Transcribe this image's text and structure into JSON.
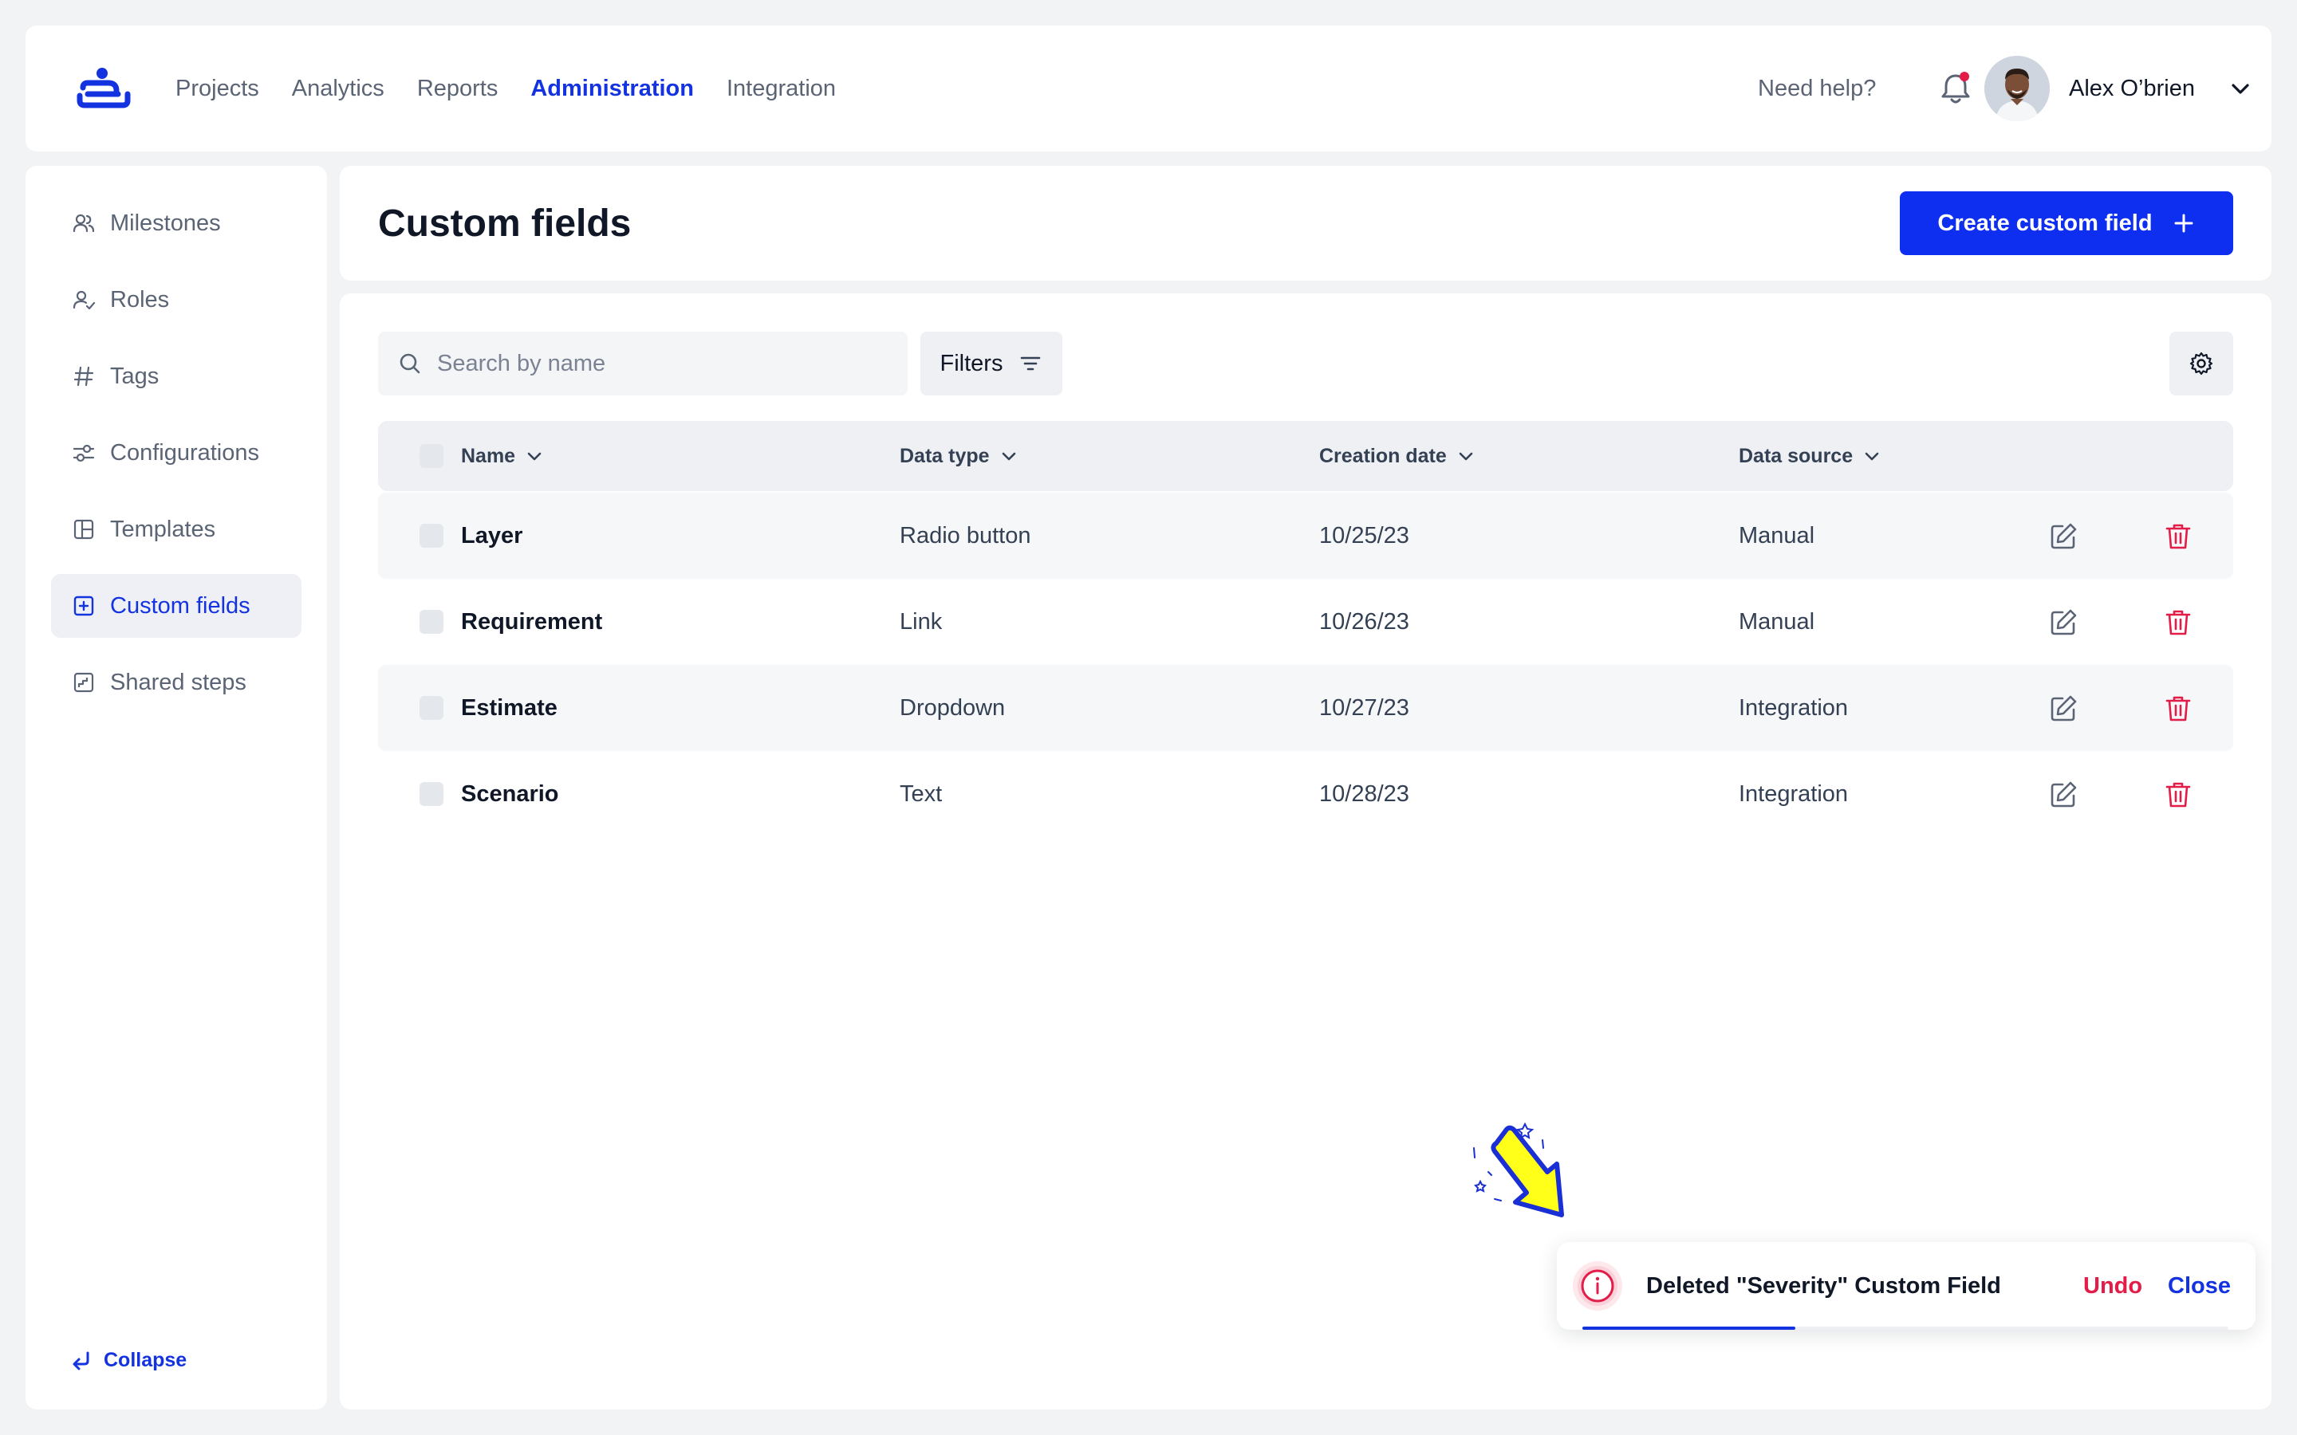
{
  "nav": {
    "items": [
      {
        "label": "Projects",
        "active": false
      },
      {
        "label": "Analytics",
        "active": false
      },
      {
        "label": "Reports",
        "active": false
      },
      {
        "label": "Administration",
        "active": true
      },
      {
        "label": "Integration",
        "active": false
      }
    ],
    "help_label": "Need help?",
    "user_name": "Alex O’brien",
    "notification_dot_color": "#e11d48"
  },
  "sidebar": {
    "items": [
      {
        "label": "Milestones",
        "icon": "users-icon"
      },
      {
        "label": "Roles",
        "icon": "user-check-icon"
      },
      {
        "label": "Tags",
        "icon": "hash-icon"
      },
      {
        "label": "Configurations",
        "icon": "sliders-icon"
      },
      {
        "label": "Templates",
        "icon": "layout-icon"
      },
      {
        "label": "Custom fields",
        "icon": "plus-square-icon",
        "active": true
      },
      {
        "label": "Shared steps",
        "icon": "step-icon"
      }
    ],
    "collapse_label": "Collapse"
  },
  "header": {
    "title": "Custom fields",
    "create_label": "Create custom field"
  },
  "toolbar": {
    "search_placeholder": "Search by name",
    "search_value": "",
    "filters_label": "Filters"
  },
  "table": {
    "columns": [
      "Name",
      "Data type",
      "Creation date",
      "Data source"
    ],
    "rows": [
      {
        "name": "Layer",
        "type": "Radio button",
        "date": "10/25/23",
        "source": "Manual"
      },
      {
        "name": "Requirement",
        "type": "Link",
        "date": "10/26/23",
        "source": "Manual"
      },
      {
        "name": "Estimate",
        "type": "Dropdown",
        "date": "10/27/23",
        "source": "Integration"
      },
      {
        "name": "Scenario",
        "type": "Text",
        "date": "10/28/23",
        "source": "Integration"
      }
    ]
  },
  "toast": {
    "message": "Deleted \"Severity\" Custom Field",
    "undo_label": "Undo",
    "close_label": "Close",
    "progress": 0.33
  },
  "colors": {
    "accent": "#1433e0",
    "danger": "#e11d48",
    "highlight_arrow": "#ffff1a"
  }
}
